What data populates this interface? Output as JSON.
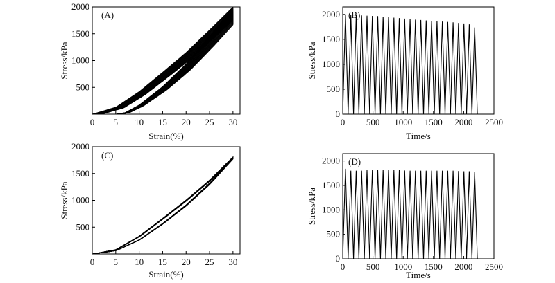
{
  "chart_data": [
    {
      "panel_label": "(A)",
      "type": "line",
      "xlabel": "Strain(%)",
      "ylabel": "Stress/kPa",
      "xlim": [
        0,
        31.5
      ],
      "ylim": [
        0,
        2000
      ],
      "xticks": [
        0,
        5,
        10,
        15,
        20,
        25,
        30
      ],
      "yticks": [
        500,
        1000,
        1500,
        2000
      ],
      "x_tick_labels": [
        "0",
        "5",
        "10",
        "15",
        "20",
        "25",
        "30"
      ],
      "y_tick_labels": [
        "500",
        "1000",
        "1500",
        "2000"
      ],
      "description_series": "25 hysteresis loops, strain 0-30% and back, loading peaks ~2000 kPa decreasing to ~1750 kPa",
      "cycles": 25,
      "peak_stress_first": 2000,
      "peak_stress_last": 1750,
      "loading_curve_sample": {
        "x": [
          0,
          5,
          10,
          15,
          20,
          25,
          30
        ],
        "y": [
          0,
          130,
          420,
          780,
          1150,
          1570,
          2000
        ]
      },
      "unloading_curve_sample": {
        "x": [
          30,
          25,
          20,
          15,
          10,
          7,
          5
        ],
        "y": [
          1750,
          1270,
          820,
          450,
          150,
          25,
          0
        ]
      }
    },
    {
      "panel_label": "(B)",
      "type": "line",
      "xlabel": "Time/s",
      "ylabel": "Stress/kPa",
      "xlim": [
        0,
        2500
      ],
      "ylim": [
        0,
        2150
      ],
      "xticks": [
        0,
        500,
        1000,
        1500,
        2000,
        2500
      ],
      "yticks": [
        0,
        500,
        1000,
        1500,
        2000
      ],
      "x_tick_labels": [
        "0",
        "500",
        "1000",
        "1500",
        "2000",
        "2500"
      ],
      "y_tick_labels": [
        "0",
        "500",
        "1000",
        "1500",
        "2000"
      ],
      "cycles": 25,
      "first_peak_time": 45,
      "cycle_period": 89,
      "end_time": 2235,
      "peak_values": [
        2000,
        1990,
        1985,
        1980,
        1975,
        1970,
        1965,
        1955,
        1945,
        1935,
        1925,
        1915,
        1905,
        1895,
        1888,
        1880,
        1872,
        1865,
        1858,
        1850,
        1840,
        1830,
        1818,
        1800,
        1740
      ]
    },
    {
      "panel_label": "(C)",
      "type": "line",
      "xlabel": "Strain(%)",
      "ylabel": "Stress/kPa",
      "xlim": [
        0,
        31.5
      ],
      "ylim": [
        0,
        2000
      ],
      "xticks": [
        0,
        5,
        10,
        15,
        20,
        25,
        30
      ],
      "yticks": [
        500,
        1000,
        1500,
        2000
      ],
      "x_tick_labels": [
        "0",
        "5",
        "10",
        "15",
        "20",
        "25",
        "30"
      ],
      "y_tick_labels": [
        "500",
        "1000",
        "1500",
        "2000"
      ],
      "description_series": "25 nearly overlapping hysteresis loops, peak ~1800 kPa at 30% strain",
      "cycles": 25,
      "peak_stress_first": 1810,
      "peak_stress_last": 1780,
      "loading_curve_sample": {
        "x": [
          0,
          5,
          10,
          15,
          20,
          25,
          30
        ],
        "y": [
          0,
          80,
          330,
          660,
          1000,
          1370,
          1800
        ]
      },
      "unloading_curve_sample": {
        "x": [
          30,
          25,
          20,
          15,
          10,
          5,
          0
        ],
        "y": [
          1780,
          1300,
          900,
          560,
          260,
          60,
          0
        ]
      }
    },
    {
      "panel_label": "(D)",
      "type": "line",
      "xlabel": "Time/s",
      "ylabel": "Stress/kPa",
      "xlim": [
        0,
        2500
      ],
      "ylim": [
        0,
        2150
      ],
      "xticks": [
        0,
        500,
        1000,
        1500,
        2000,
        2500
      ],
      "yticks": [
        0,
        500,
        1000,
        1500,
        2000
      ],
      "x_tick_labels": [
        "0",
        "500",
        "1000",
        "1500",
        "2000",
        "2500"
      ],
      "y_tick_labels": [
        "0",
        "500",
        "1000",
        "1500",
        "2000"
      ],
      "cycles": 25,
      "first_peak_time": 45,
      "cycle_period": 89,
      "end_time": 2235,
      "peak_values": [
        1840,
        1800,
        1800,
        1800,
        1810,
        1815,
        1815,
        1815,
        1815,
        1810,
        1810,
        1805,
        1800,
        1800,
        1800,
        1800,
        1800,
        1800,
        1800,
        1800,
        1800,
        1795,
        1790,
        1790,
        1780
      ]
    }
  ]
}
